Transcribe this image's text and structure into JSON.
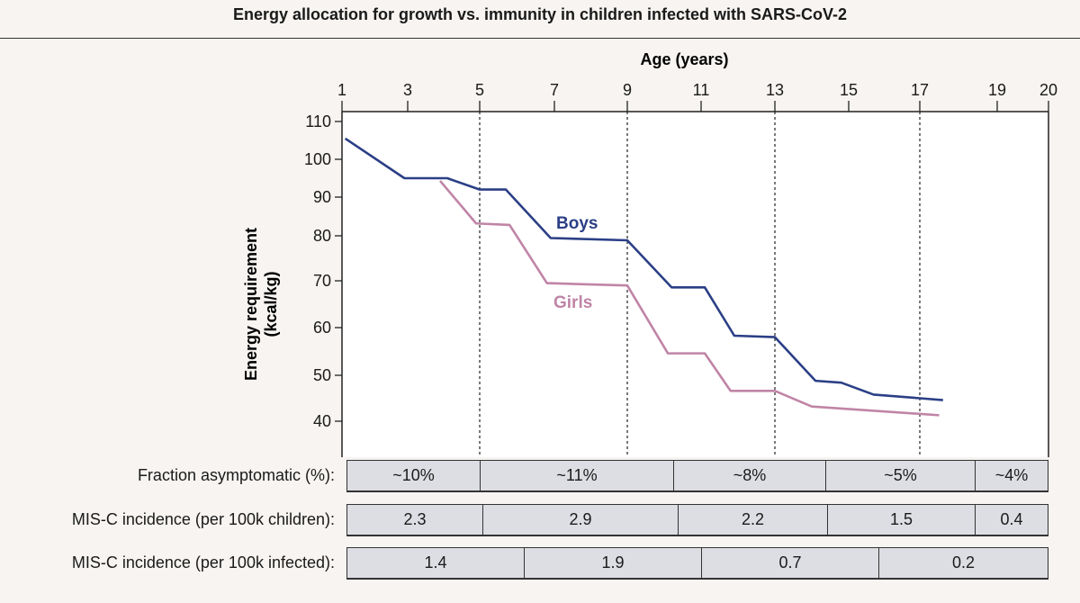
{
  "chart_data": {
    "type": "line",
    "title": "Energy allocation for growth vs. immunity in children infected with SARS-CoV-2",
    "xlabel": "Age (years)",
    "ylabel": [
      "Energy requirement",
      "(kcal/kg)"
    ],
    "xticks": [
      1,
      3,
      5,
      7,
      9,
      11,
      13,
      15,
      17,
      19,
      20
    ],
    "yticks": [
      110,
      100,
      90,
      80,
      70,
      60,
      50,
      40
    ],
    "xlim": [
      1,
      20
    ],
    "ylim": [
      37,
      112
    ],
    "dashed_vlines": [
      5,
      9,
      13,
      17
    ],
    "series": [
      {
        "name": "Boys",
        "color": "#2b3f86",
        "points": [
          [
            1.1,
            105.5
          ],
          [
            2.9,
            95
          ],
          [
            4.1,
            95
          ],
          [
            5,
            92
          ],
          [
            5.7,
            92
          ],
          [
            6.9,
            79.5
          ],
          [
            9,
            79
          ],
          [
            10.2,
            68.6
          ],
          [
            11.1,
            68.6
          ],
          [
            11.9,
            58.3
          ],
          [
            13,
            58
          ],
          [
            14.1,
            48.8
          ],
          [
            14.8,
            48.4
          ],
          [
            15.7,
            45.8
          ],
          [
            17,
            45
          ],
          [
            17.6,
            44.6
          ]
        ]
      },
      {
        "name": "Girls",
        "color": "#c084a6",
        "points": [
          [
            3.9,
            94.3
          ],
          [
            4.9,
            83.2
          ],
          [
            5.8,
            82.8
          ],
          [
            6.8,
            69.5
          ],
          [
            9,
            69
          ],
          [
            10.1,
            54.6
          ],
          [
            11.1,
            54.6
          ],
          [
            11.8,
            46.6
          ],
          [
            13,
            46.6
          ],
          [
            14,
            43.2
          ],
          [
            17.5,
            41.3
          ]
        ]
      }
    ]
  },
  "table": [
    {
      "label": "Fraction asymptomatic (%):",
      "cells": [
        "~10%",
        "~11%",
        "~8%",
        "~5%",
        "~4%"
      ]
    },
    {
      "label": "MIS-C incidence (per 100k children):",
      "cells": [
        "2.3",
        "2.9",
        "2.2",
        "1.5",
        "0.4"
      ]
    },
    {
      "label": "MIS-C incidence (per 100k infected):",
      "cells": [
        "1.4",
        "1.9",
        "0.7",
        "0.2"
      ]
    }
  ]
}
